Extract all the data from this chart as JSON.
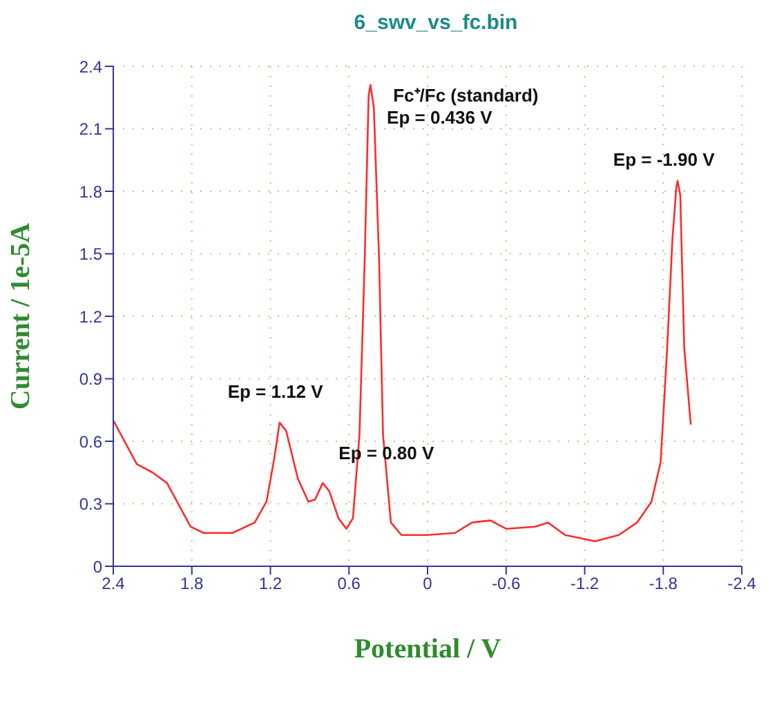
{
  "chart_data": {
    "type": "line",
    "title": "6_swv_vs_fc.bin",
    "xlabel": "Potential / V",
    "ylabel": "Current / 1e-5A",
    "xlim": [
      2.4,
      -2.4
    ],
    "xticks": [
      2.4,
      1.8,
      1.2,
      0.6,
      0,
      -0.6,
      -1.2,
      -1.8,
      -2.4
    ],
    "ylim": [
      0,
      2.4
    ],
    "yticks": [
      0,
      0.3,
      0.6,
      0.9,
      1.2,
      1.5,
      1.8,
      2.1,
      2.4
    ],
    "grid": true,
    "marker": "none",
    "line_style": "solid",
    "annotations": [
      {
        "text": "Ep = 1.12 V",
        "x": 1.12,
        "y": 0.69
      },
      {
        "text": "Ep = 0.80 V",
        "x": 0.8,
        "y": 0.4
      },
      {
        "text": "Fc⁺/Fc (standard)",
        "x": 0.436,
        "y": 2.31
      },
      {
        "text": "Ep = 0.436 V",
        "x": 0.436,
        "y": 2.31
      },
      {
        "text": "Ep = -1.90 V",
        "x": -1.9,
        "y": 1.85
      }
    ],
    "series": [
      {
        "color": "#ff2a2a",
        "x": [
          2.4,
          2.22,
          2.1,
          1.99,
          1.81,
          1.71,
          1.49,
          1.32,
          1.23,
          1.17,
          1.13,
          1.08,
          0.99,
          0.91,
          0.86,
          0.8,
          0.75,
          0.68,
          0.62,
          0.57,
          0.52,
          0.48,
          0.45,
          0.436,
          0.41,
          0.37,
          0.34,
          0.28,
          0.2,
          0.0,
          -0.21,
          -0.34,
          -0.48,
          -0.6,
          -0.82,
          -0.92,
          -1.05,
          -1.28,
          -1.46,
          -1.6,
          -1.71,
          -1.78,
          -1.83,
          -1.87,
          -1.9,
          -1.91,
          -1.93,
          -1.96,
          -2.01
        ],
        "values": [
          0.7,
          0.49,
          0.45,
          0.4,
          0.19,
          0.16,
          0.16,
          0.21,
          0.31,
          0.52,
          0.69,
          0.65,
          0.42,
          0.31,
          0.32,
          0.4,
          0.36,
          0.23,
          0.18,
          0.23,
          0.63,
          1.47,
          2.26,
          2.31,
          2.2,
          1.47,
          0.63,
          0.21,
          0.15,
          0.15,
          0.16,
          0.21,
          0.22,
          0.18,
          0.19,
          0.21,
          0.15,
          0.12,
          0.15,
          0.21,
          0.31,
          0.5,
          1.05,
          1.57,
          1.82,
          1.85,
          1.78,
          1.05,
          0.68
        ]
      }
    ]
  }
}
